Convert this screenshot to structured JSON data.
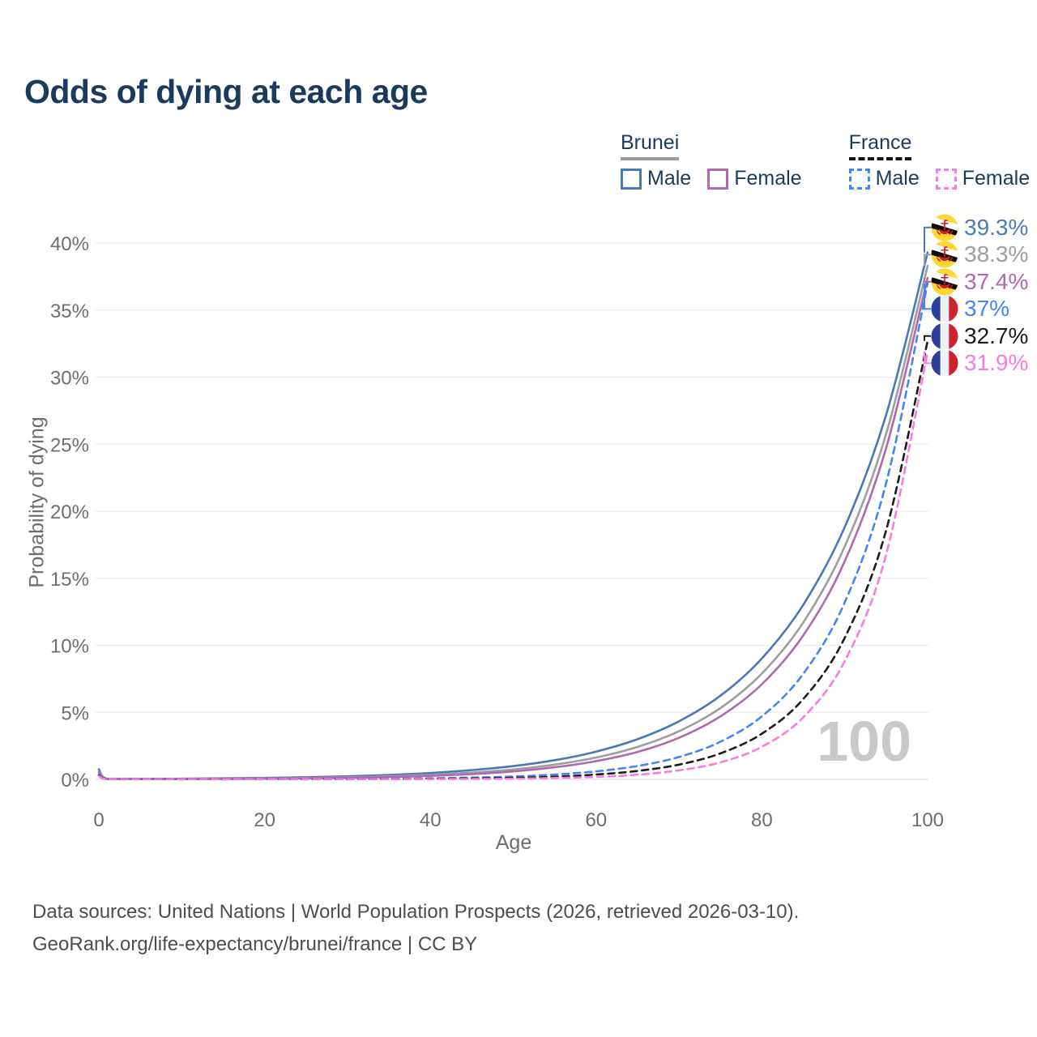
{
  "title": "Odds of dying at each age",
  "legend": {
    "groups": [
      {
        "name": "Brunei",
        "line_style": "solid",
        "underline_color": "#9a9a9a",
        "items": [
          {
            "label": "Male",
            "color": "#4878b8"
          },
          {
            "label": "Female",
            "color": "#b069ae"
          }
        ]
      },
      {
        "name": "France",
        "line_style": "dashed",
        "underline_color": "#141414",
        "items": [
          {
            "label": "Male",
            "color": "#4285f4"
          },
          {
            "label": "Female",
            "color": "#f97ae0"
          }
        ]
      }
    ]
  },
  "footer": {
    "line1": "Data sources: United Nations | World Population Prospects (2026, retrieved 2026-03-10).",
    "line2": "GeoRank.org/life-expectancy/brunei/france | CC BY"
  },
  "chart_data": {
    "type": "line",
    "title": "Odds of dying at each age",
    "xlabel": "Age",
    "ylabel": "Probability of dying",
    "xlim": [
      0,
      100
    ],
    "ylim": [
      0,
      40
    ],
    "xticks": [
      0,
      20,
      40,
      60,
      80,
      100
    ],
    "yticks": [
      0,
      5,
      10,
      15,
      20,
      25,
      30,
      35,
      40
    ],
    "ytick_suffix": "%",
    "grid": "horizontal",
    "legend_position": "top-right",
    "age_annotation": "100",
    "x": [
      0,
      1,
      5,
      10,
      15,
      20,
      25,
      30,
      35,
      40,
      45,
      50,
      55,
      60,
      65,
      70,
      75,
      80,
      85,
      90,
      95,
      100
    ],
    "series": [
      {
        "name": "Brunei Male",
        "country": "Brunei",
        "sex": "male",
        "color": "#4878b8",
        "dash": "solid",
        "flag": "brunei",
        "end_label": "39.3%",
        "end_value": 39.3,
        "values": [
          0.75,
          0.05,
          0.04,
          0.05,
          0.08,
          0.11,
          0.16,
          0.23,
          0.33,
          0.47,
          0.69,
          0.99,
          1.43,
          2.07,
          3.0,
          4.33,
          6.24,
          9.02,
          13.03,
          18.82,
          27.19,
          39.3
        ]
      },
      {
        "name": "Brunei Both sexes",
        "country": "Brunei",
        "sex": "both",
        "color": "#9e9e9e",
        "dash": "solid",
        "flag": "brunei",
        "end_label": "38.3%",
        "end_value": 38.3,
        "values": [
          0.6,
          0.04,
          0.03,
          0.03,
          0.05,
          0.07,
          0.1,
          0.15,
          0.23,
          0.34,
          0.5,
          0.74,
          1.1,
          1.63,
          2.42,
          3.59,
          5.32,
          7.9,
          11.71,
          17.37,
          25.77,
          38.3
        ]
      },
      {
        "name": "Brunei Female",
        "country": "Brunei",
        "sex": "female",
        "color": "#b069ae",
        "dash": "solid",
        "flag": "brunei",
        "end_label": "37.4%",
        "end_value": 37.4,
        "values": [
          0.5,
          0.03,
          0.02,
          0.02,
          0.03,
          0.05,
          0.07,
          0.11,
          0.17,
          0.26,
          0.39,
          0.59,
          0.9,
          1.36,
          2.05,
          3.1,
          4.7,
          7.1,
          10.75,
          16.27,
          24.72,
          37.4
        ]
      },
      {
        "name": "France Male",
        "country": "France",
        "sex": "male",
        "color": "#4285f4",
        "dash": "dashed",
        "flag": "france",
        "end_label": "37%",
        "end_value": 37.0,
        "values": [
          0.35,
          0.02,
          0.01,
          0.01,
          0.01,
          0.01,
          0.02,
          0.03,
          0.05,
          0.08,
          0.13,
          0.21,
          0.36,
          0.6,
          1.0,
          1.67,
          2.81,
          4.7,
          7.88,
          13.2,
          22.1,
          37.0
        ]
      },
      {
        "name": "France Both sexes",
        "country": "France",
        "sex": "both",
        "color": "#1c1c1c",
        "dash": "dashed",
        "flag": "france",
        "end_label": "32.7%",
        "end_value": 32.7,
        "values": [
          0.3,
          0.01,
          0.01,
          0.01,
          0.01,
          0.01,
          0.01,
          0.01,
          0.02,
          0.04,
          0.07,
          0.11,
          0.2,
          0.36,
          0.63,
          1.1,
          1.94,
          3.41,
          6.0,
          10.56,
          18.58,
          32.7
        ]
      },
      {
        "name": "France Female",
        "country": "France",
        "sex": "female",
        "color": "#f97ae0",
        "dash": "dashed",
        "flag": "france",
        "end_label": "31.9%",
        "end_value": 31.9,
        "values": [
          0.25,
          0.01,
          0.005,
          0.005,
          0.005,
          0.005,
          0.01,
          0.01,
          0.01,
          0.02,
          0.03,
          0.05,
          0.1,
          0.18,
          0.35,
          0.67,
          1.27,
          2.43,
          4.63,
          8.82,
          16.77,
          31.9
        ]
      }
    ]
  }
}
